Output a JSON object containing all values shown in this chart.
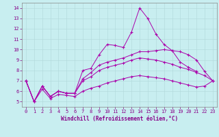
{
  "xlabel": "Windchill (Refroidissement éolien,°C)",
  "ylabel": "",
  "background_color": "#c8eef0",
  "line_color": "#aa00aa",
  "grid_color": "#b0d8da",
  "xlim": [
    -0.5,
    23.5
  ],
  "ylim": [
    4.5,
    14.5
  ],
  "xticks": [
    0,
    1,
    2,
    3,
    4,
    5,
    6,
    7,
    8,
    9,
    10,
    11,
    12,
    13,
    14,
    15,
    16,
    17,
    18,
    19,
    20,
    21,
    22,
    23
  ],
  "yticks": [
    5,
    6,
    7,
    8,
    9,
    10,
    11,
    12,
    13,
    14
  ],
  "series": [
    [
      7.0,
      5.0,
      6.5,
      5.5,
      6.0,
      5.8,
      5.8,
      8.0,
      8.2,
      9.5,
      10.5,
      10.4,
      10.2,
      11.7,
      14.0,
      13.0,
      11.5,
      10.5,
      9.9,
      8.8,
      8.3,
      7.9,
      null,
      null
    ],
    [
      7.0,
      5.0,
      6.5,
      5.5,
      6.0,
      5.8,
      5.8,
      7.2,
      7.8,
      8.5,
      8.8,
      9.0,
      9.2,
      9.5,
      9.8,
      9.8,
      9.9,
      10.0,
      9.9,
      9.8,
      9.5,
      9.0,
      7.9,
      7.0
    ],
    [
      7.0,
      5.0,
      6.5,
      5.5,
      6.0,
      5.8,
      5.8,
      7.0,
      7.4,
      8.0,
      8.3,
      8.5,
      8.7,
      9.0,
      9.2,
      9.1,
      9.0,
      8.8,
      8.6,
      8.3,
      8.1,
      7.8,
      7.5,
      7.0
    ],
    [
      7.0,
      5.0,
      6.2,
      5.3,
      5.7,
      5.6,
      5.5,
      6.0,
      6.3,
      6.5,
      6.8,
      7.0,
      7.2,
      7.4,
      7.5,
      7.4,
      7.3,
      7.2,
      7.0,
      6.8,
      6.6,
      6.4,
      6.5,
      7.0
    ]
  ],
  "figsize": [
    3.2,
    2.0
  ],
  "dpi": 100,
  "tick_fontsize": 5,
  "xlabel_fontsize": 5.5,
  "tick_color": "#880088",
  "spine_color": "#888888",
  "marker": "+",
  "markersize": 3,
  "linewidth": 0.7
}
